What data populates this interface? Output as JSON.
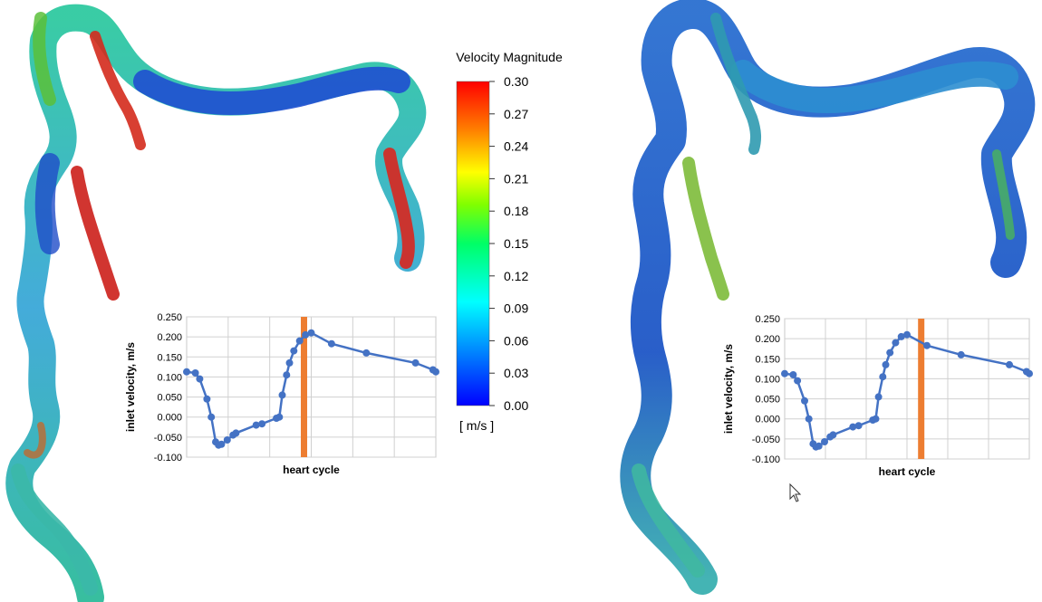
{
  "colorbar": {
    "title": "Velocity Magnitude",
    "unit": "[ m/s ]",
    "ticks": [
      "0.30",
      "0.27",
      "0.24",
      "0.21",
      "0.18",
      "0.15",
      "0.12",
      "0.09",
      "0.06",
      "0.03",
      "0.00"
    ],
    "min": 0.0,
    "max": 0.3,
    "colors": [
      "#0000ff",
      "#00a0ff",
      "#00ffff",
      "#00ff80",
      "#80ff00",
      "#ffff00",
      "#ff8000",
      "#ff0000"
    ]
  },
  "chart_data": [
    {
      "type": "line",
      "xlabel": "heart cycle",
      "ylabel": "inlet velocity, m/s",
      "ylim": [
        -0.1,
        0.25
      ],
      "yticks": [
        "0.250",
        "0.200",
        "0.150",
        "0.100",
        "0.050",
        "0.000",
        "-0.050",
        "-0.100"
      ],
      "grid": true,
      "x": [
        0.0,
        0.03,
        0.045,
        0.07,
        0.085,
        0.1,
        0.11,
        0.12,
        0.14,
        0.16,
        0.17,
        0.24,
        0.26,
        0.31,
        0.32,
        0.33,
        0.345,
        0.355,
        0.37,
        0.39,
        0.41,
        0.43,
        0.5,
        0.62,
        0.79,
        0.85,
        0.86
      ],
      "y": [
        0.113,
        0.11,
        0.095,
        0.045,
        0.0,
        -0.062,
        -0.07,
        -0.068,
        -0.057,
        -0.045,
        -0.04,
        -0.02,
        -0.017,
        -0.003,
        0.0,
        0.055,
        0.105,
        0.135,
        0.165,
        0.19,
        0.205,
        0.21,
        0.183,
        0.16,
        0.135,
        0.118,
        0.113
      ],
      "xlim": [
        0,
        0.86
      ],
      "marker_x": 0.405,
      "marker_color": "#ed7d31",
      "line_color": "#4472c4"
    },
    {
      "type": "line",
      "xlabel": "heart cycle",
      "ylabel": "inlet velocity, m/s",
      "ylim": [
        -0.1,
        0.25
      ],
      "yticks": [
        "0.250",
        "0.200",
        "0.150",
        "0.100",
        "0.050",
        "0.000",
        "-0.050",
        "-0.100"
      ],
      "grid": true,
      "x": [
        0.0,
        0.03,
        0.045,
        0.07,
        0.085,
        0.1,
        0.11,
        0.12,
        0.14,
        0.16,
        0.17,
        0.24,
        0.26,
        0.31,
        0.32,
        0.33,
        0.345,
        0.355,
        0.37,
        0.39,
        0.41,
        0.43,
        0.5,
        0.62,
        0.79,
        0.85,
        0.86
      ],
      "y": [
        0.113,
        0.11,
        0.095,
        0.045,
        0.0,
        -0.062,
        -0.07,
        -0.068,
        -0.057,
        -0.045,
        -0.04,
        -0.02,
        -0.017,
        -0.003,
        0.0,
        0.055,
        0.105,
        0.135,
        0.165,
        0.19,
        0.205,
        0.21,
        0.183,
        0.16,
        0.135,
        0.118,
        0.113
      ],
      "xlim": [
        0,
        0.86
      ],
      "marker_x": 0.48,
      "marker_color": "#ed7d31",
      "line_color": "#4472c4"
    }
  ]
}
